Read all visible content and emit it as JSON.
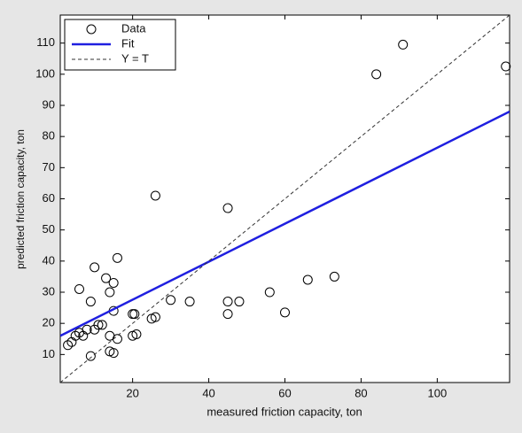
{
  "chart_data": {
    "type": "scatter",
    "x_label": "measured friction capacity, ton",
    "y_label": "predicted friction capacity, ton",
    "xlim": [
      1,
      119
    ],
    "ylim": [
      1,
      119
    ],
    "xticks": [
      20,
      40,
      60,
      80,
      100
    ],
    "yticks": [
      10,
      20,
      30,
      40,
      50,
      60,
      70,
      80,
      90,
      100,
      110
    ],
    "legend_position": "upper-left",
    "series": [
      {
        "name": "Data",
        "color": "#000000",
        "kind": "markers",
        "x": [
          3,
          4,
          5,
          6,
          6,
          7,
          8,
          9,
          9,
          10,
          10,
          11,
          12,
          13,
          14,
          14,
          14,
          15,
          15,
          15,
          16,
          16,
          20,
          20,
          20.5,
          21,
          25,
          26,
          26,
          30,
          35,
          45,
          45,
          45,
          48,
          56,
          60,
          66,
          73,
          84,
          91,
          118
        ],
        "values": [
          13,
          14,
          16,
          31,
          17,
          16,
          18,
          27,
          9.5,
          38,
          18,
          19.5,
          19.5,
          34.5,
          30,
          16,
          11,
          24,
          10.5,
          33,
          41,
          15,
          23,
          16,
          23,
          16.5,
          21.5,
          61,
          22,
          27.5,
          27,
          57,
          27,
          23,
          27,
          30,
          23.5,
          34,
          35,
          100,
          109.5,
          102.5
        ]
      },
      {
        "name": "Fit",
        "color": "#1f1fe0",
        "kind": "solid",
        "x": [
          1,
          119
        ],
        "values": [
          16,
          88
        ]
      },
      {
        "name": "Y = T",
        "color": "#333333",
        "kind": "dashed",
        "x": [
          1,
          119
        ],
        "values": [
          1,
          119
        ]
      }
    ]
  }
}
